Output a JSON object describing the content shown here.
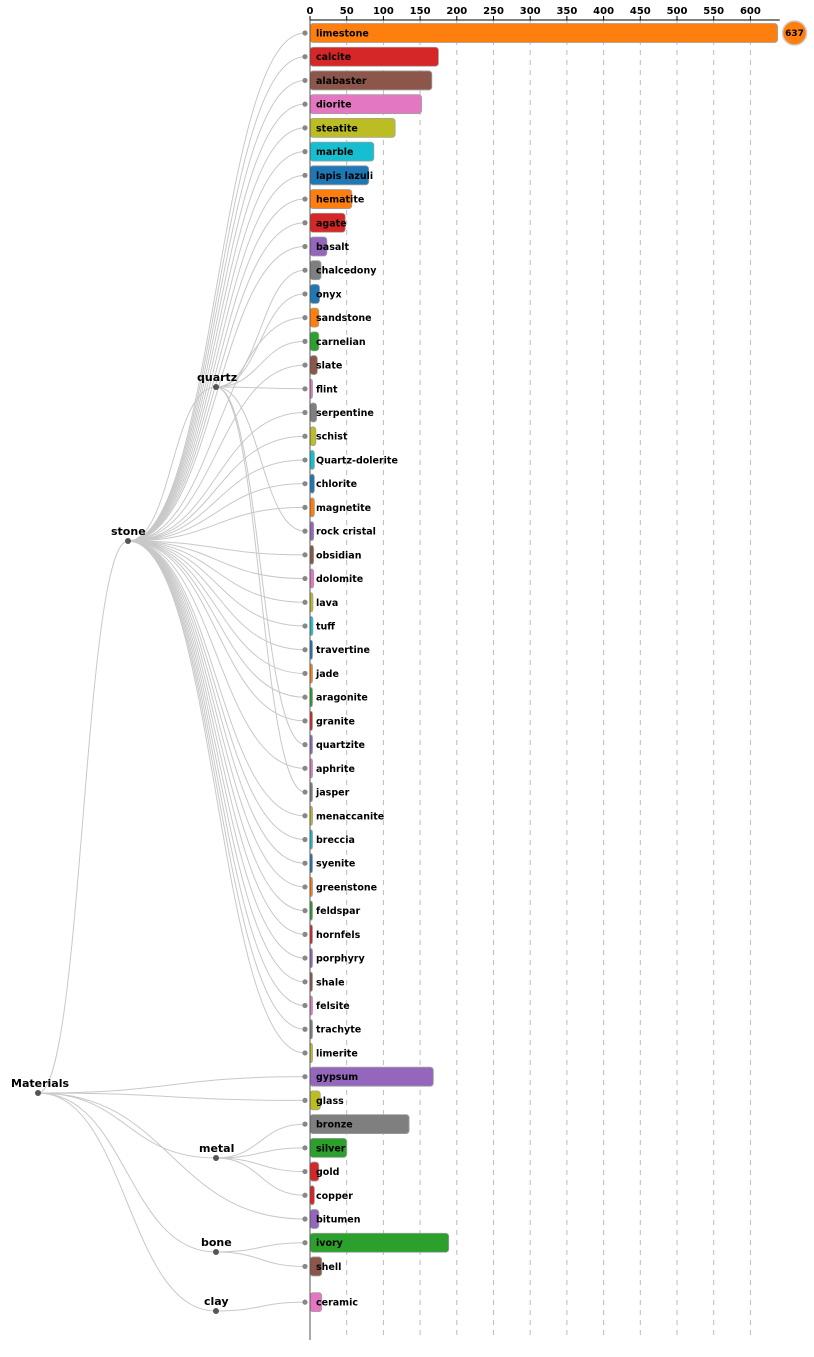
{
  "chart_data": {
    "type": "bar",
    "orientation": "horizontal",
    "layout": "tree with bars",
    "xlim": [
      0,
      640
    ],
    "ticks": [
      0,
      50,
      100,
      150,
      200,
      250,
      300,
      350,
      400,
      450,
      500,
      550,
      600
    ],
    "grid": "vertical dashed",
    "root": "Materials",
    "groups": [
      {
        "name": "stone",
        "parent": "Materials"
      },
      {
        "name": "quartz",
        "parent": "stone"
      },
      {
        "name": "metal",
        "parent": "Materials"
      },
      {
        "name": "bone",
        "parent": "Materials"
      },
      {
        "name": "clay",
        "parent": "Materials"
      }
    ],
    "bars": [
      {
        "label": "limestone",
        "value": 637,
        "parent": "stone",
        "color": "#ff7f0e",
        "badge": "637"
      },
      {
        "label": "calcite",
        "value": 175,
        "parent": "stone",
        "color": "#d62728"
      },
      {
        "label": "alabaster",
        "value": 166,
        "parent": "stone",
        "color": "#8c564b"
      },
      {
        "label": "diorite",
        "value": 152,
        "parent": "stone",
        "color": "#e377c2"
      },
      {
        "label": "steatite",
        "value": 116,
        "parent": "stone",
        "color": "#bcbd22"
      },
      {
        "label": "marble",
        "value": 87,
        "parent": "stone",
        "color": "#17becf"
      },
      {
        "label": "lapis lazuli",
        "value": 80,
        "parent": "stone",
        "color": "#1f77b4"
      },
      {
        "label": "hematite",
        "value": 57,
        "parent": "stone",
        "color": "#ff7f0e"
      },
      {
        "label": "agate",
        "value": 48,
        "parent": "stone",
        "color": "#d62728"
      },
      {
        "label": "basalt",
        "value": 23,
        "parent": "stone",
        "color": "#9467bd"
      },
      {
        "label": "chalcedony",
        "value": 15,
        "parent": "quartz",
        "color": "#7f7f7f"
      },
      {
        "label": "onyx",
        "value": 13,
        "parent": "quartz",
        "color": "#1f77b4"
      },
      {
        "label": "sandstone",
        "value": 12,
        "parent": "stone",
        "color": "#ff7f0e"
      },
      {
        "label": "carnelian",
        "value": 12,
        "parent": "quartz",
        "color": "#2ca02c"
      },
      {
        "label": "slate",
        "value": 10,
        "parent": "stone",
        "color": "#8c564b"
      },
      {
        "label": "flint",
        "value": 2,
        "parent": "quartz",
        "color": "#e377c2"
      },
      {
        "label": "serpentine",
        "value": 9,
        "parent": "stone",
        "color": "#7f7f7f"
      },
      {
        "label": "schist",
        "value": 8,
        "parent": "stone",
        "color": "#bcbd22"
      },
      {
        "label": "Quartz-dolerite",
        "value": 6,
        "parent": "stone",
        "color": "#17becf"
      },
      {
        "label": "chlorite",
        "value": 6,
        "parent": "stone",
        "color": "#1f77b4"
      },
      {
        "label": "magnetite",
        "value": 6,
        "parent": "stone",
        "color": "#ff7f0e"
      },
      {
        "label": "rock cristal",
        "value": 5,
        "parent": "quartz",
        "color": "#9467bd"
      },
      {
        "label": "obsidian",
        "value": 5,
        "parent": "stone",
        "color": "#8c564b"
      },
      {
        "label": "dolomite",
        "value": 5,
        "parent": "stone",
        "color": "#e377c2"
      },
      {
        "label": "lava",
        "value": 4,
        "parent": "stone",
        "color": "#bcbd22"
      },
      {
        "label": "tuff",
        "value": 4,
        "parent": "stone",
        "color": "#17becf"
      },
      {
        "label": "travertine",
        "value": 3,
        "parent": "stone",
        "color": "#1f77b4"
      },
      {
        "label": "jade",
        "value": 3,
        "parent": "stone",
        "color": "#ff7f0e"
      },
      {
        "label": "aragonite",
        "value": 3,
        "parent": "stone",
        "color": "#2ca02c"
      },
      {
        "label": "granite",
        "value": 3,
        "parent": "stone",
        "color": "#d62728"
      },
      {
        "label": "quartzite",
        "value": 3,
        "parent": "quartz",
        "color": "#9467bd"
      },
      {
        "label": "aphrite",
        "value": 2,
        "parent": "stone",
        "color": "#e377c2"
      },
      {
        "label": "jasper",
        "value": 2,
        "parent": "quartz",
        "color": "#7f7f7f"
      },
      {
        "label": "menaccanite",
        "value": 2,
        "parent": "stone",
        "color": "#bcbd22"
      },
      {
        "label": "breccia",
        "value": 2,
        "parent": "stone",
        "color": "#17becf"
      },
      {
        "label": "syenite",
        "value": 2,
        "parent": "stone",
        "color": "#1f77b4"
      },
      {
        "label": "greenstone",
        "value": 2,
        "parent": "stone",
        "color": "#ff7f0e"
      },
      {
        "label": "feldspar",
        "value": 2,
        "parent": "stone",
        "color": "#2ca02c"
      },
      {
        "label": "hornfels",
        "value": 2,
        "parent": "stone",
        "color": "#d62728"
      },
      {
        "label": "porphyry",
        "value": 2,
        "parent": "stone",
        "color": "#9467bd"
      },
      {
        "label": "shale",
        "value": 2,
        "parent": "stone",
        "color": "#8c564b"
      },
      {
        "label": "felsite",
        "value": 1,
        "parent": "stone",
        "color": "#e377c2"
      },
      {
        "label": "trachyte",
        "value": 1,
        "parent": "stone",
        "color": "#7f7f7f"
      },
      {
        "label": "limerite",
        "value": 1,
        "parent": "stone",
        "color": "#bcbd22"
      },
      {
        "label": "gypsum",
        "value": 168,
        "parent": "Materials",
        "color": "#9467bd"
      },
      {
        "label": "glass",
        "value": 14,
        "parent": "Materials",
        "color": "#bcbd22"
      },
      {
        "label": "bronze",
        "value": 135,
        "parent": "metal",
        "color": "#7f7f7f"
      },
      {
        "label": "silver",
        "value": 50,
        "parent": "metal",
        "color": "#2ca02c"
      },
      {
        "label": "gold",
        "value": 12,
        "parent": "metal",
        "color": "#d62728"
      },
      {
        "label": "copper",
        "value": 6,
        "parent": "metal",
        "color": "#d62728"
      },
      {
        "label": "bitumen",
        "value": 12,
        "parent": "Materials",
        "color": "#9467bd"
      },
      {
        "label": "ivory",
        "value": 189,
        "parent": "bone",
        "color": "#2ca02c"
      },
      {
        "label": "shell",
        "value": 16,
        "parent": "bone",
        "color": "#8c564b"
      },
      {
        "label": "ceramic",
        "value": 16,
        "parent": "clay",
        "color": "#e377c2"
      }
    ]
  }
}
